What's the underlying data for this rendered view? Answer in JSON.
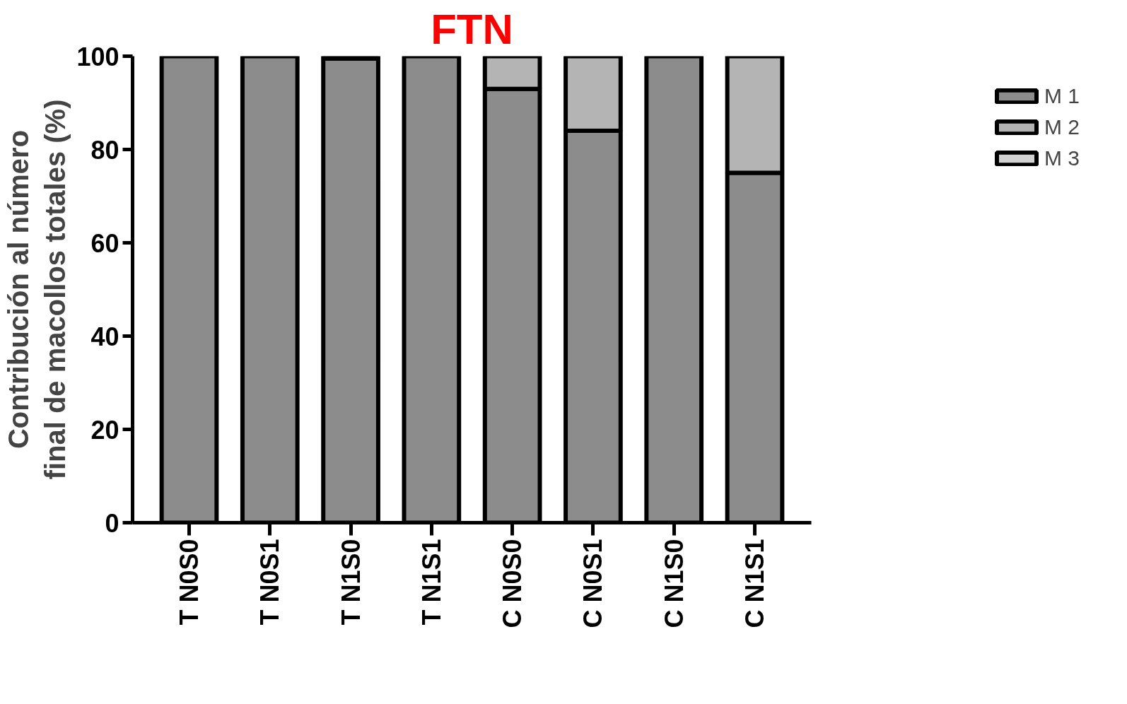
{
  "chart_data": {
    "type": "bar",
    "title": "FTN",
    "ylabel": "Contribución al número\nfinal de macollos totales (%)",
    "categories": [
      "T N0S0",
      "T N0S1",
      "T N1S0",
      "T N1S1",
      "C N0S0",
      "C N0S1",
      "C N1S0",
      "C N1S1"
    ],
    "stacked": true,
    "series": [
      {
        "name": "M 1",
        "color": "#8c8c8c",
        "values": [
          100,
          100,
          99.5,
          100,
          93,
          84,
          100,
          75
        ]
      },
      {
        "name": "M 2",
        "color": "#b4b4b4",
        "values": [
          null,
          null,
          0.5,
          null,
          7,
          16,
          null,
          25
        ]
      },
      {
        "name": "M 3",
        "color": "#d2d2d2",
        "values": [
          null,
          null,
          null,
          null,
          null,
          null,
          null,
          null
        ]
      }
    ],
    "ylim": [
      0,
      100
    ],
    "yticks": [
      0,
      20,
      40,
      60,
      80,
      100
    ],
    "grid": false,
    "legend": "top right"
  }
}
